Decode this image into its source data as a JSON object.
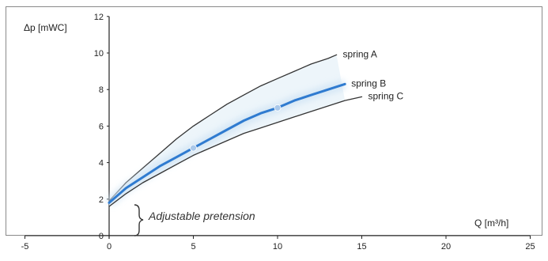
{
  "chart_data": {
    "type": "line",
    "title": "",
    "ylabel": "Δp [mWC]",
    "xlabel": "Q [m³/h]",
    "xlim": [
      -5,
      25
    ],
    "ylim": [
      0,
      12
    ],
    "x_ticks": [
      -5,
      0,
      5,
      10,
      15,
      20,
      25
    ],
    "y_ticks": [
      0,
      2,
      4,
      6,
      8,
      10,
      12
    ],
    "grid": false,
    "annotation": "Adjustable pretension",
    "series": [
      {
        "name": "spring A",
        "color": "#333333",
        "x": [
          0,
          1,
          2,
          3,
          4,
          5,
          6,
          7,
          8,
          9,
          10,
          11,
          12,
          13,
          13.5
        ],
        "y": [
          1.9,
          2.9,
          3.7,
          4.5,
          5.3,
          6.0,
          6.6,
          7.2,
          7.7,
          8.2,
          8.6,
          9.0,
          9.4,
          9.7,
          9.9
        ]
      },
      {
        "name": "spring B",
        "color": "#2f7bd0",
        "x": [
          0,
          1,
          2,
          3,
          4,
          5,
          6,
          7,
          8,
          9,
          10,
          11,
          12,
          13,
          14
        ],
        "y": [
          1.8,
          2.6,
          3.2,
          3.8,
          4.3,
          4.8,
          5.3,
          5.8,
          6.3,
          6.7,
          7.0,
          7.4,
          7.7,
          8.0,
          8.3
        ]
      },
      {
        "name": "spring C",
        "color": "#333333",
        "x": [
          0,
          1,
          2,
          3,
          4,
          5,
          6,
          7,
          8,
          9,
          10,
          11,
          12,
          13,
          14,
          15
        ],
        "y": [
          1.6,
          2.3,
          2.9,
          3.4,
          3.9,
          4.4,
          4.8,
          5.2,
          5.6,
          5.9,
          6.2,
          6.5,
          6.8,
          7.1,
          7.4,
          7.6
        ]
      }
    ],
    "markers": [
      {
        "series": "spring B",
        "x": 5,
        "y": 4.8,
        "color": "#a9c8ea"
      },
      {
        "series": "spring B",
        "x": 10,
        "y": 7.0,
        "color": "#a9c8ea"
      }
    ]
  }
}
